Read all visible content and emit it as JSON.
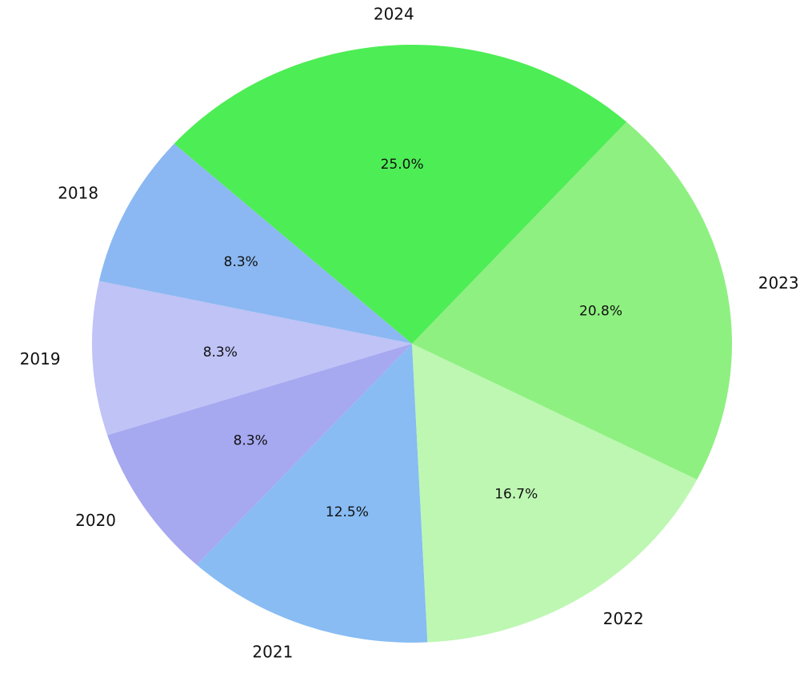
{
  "chart_data": {
    "type": "pie",
    "title": "",
    "categories": [
      "2018",
      "2019",
      "2020",
      "2021",
      "2022",
      "2023",
      "2024"
    ],
    "values": [
      8.3,
      8.3,
      8.3,
      12.5,
      16.7,
      20.8,
      25.0
    ],
    "percent_labels": [
      "8.3%",
      "8.3%",
      "8.3%",
      "12.5%",
      "16.7%",
      "20.8%",
      "25.0%"
    ],
    "colors": [
      "#8bb8f2",
      "#bfc3f6",
      "#a6a8f0",
      "#88bcf3",
      "#bdf7b2",
      "#8ef080",
      "#4ded55"
    ],
    "start_angle_deg": 138,
    "direction": "counterclockwise",
    "legend": "none"
  }
}
